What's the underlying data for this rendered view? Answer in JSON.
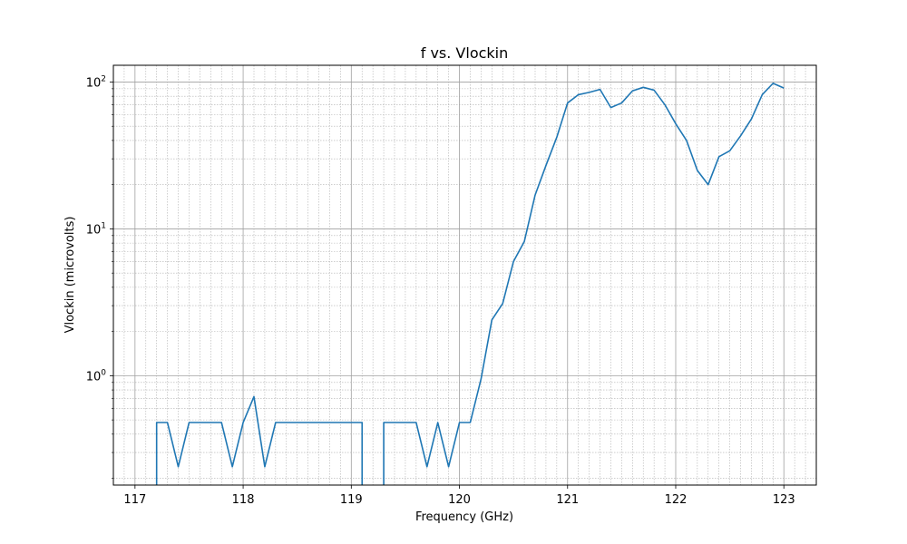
{
  "chart_data": {
    "type": "line",
    "title": "f vs. Vlockin",
    "xlabel": "Frequency (GHz)",
    "ylabel": "Vlockin (microvolts)",
    "xlim": [
      116.8,
      123.3
    ],
    "ylim": [
      0.18,
      130
    ],
    "yscale": "log",
    "grid": true,
    "x_ticks": [
      117,
      118,
      119,
      120,
      121,
      122,
      123
    ],
    "x_tick_labels": [
      "117",
      "118",
      "119",
      "120",
      "121",
      "122",
      "123"
    ],
    "y_ticks": [
      {
        "value": 1,
        "base": "10",
        "exp": "0"
      },
      {
        "value": 10,
        "base": "10",
        "exp": "1"
      },
      {
        "value": 100,
        "base": "10",
        "exp": "2"
      }
    ],
    "series": [
      {
        "color": "#1f77b4",
        "segments": [
          {
            "x": [
              117.2,
              117.2,
              117.3,
              117.4,
              117.5,
              117.6,
              117.7,
              117.8,
              117.9,
              118.0,
              118.1,
              118.2,
              118.3,
              118.4,
              118.5,
              118.6,
              118.7,
              118.8,
              118.9,
              119.0,
              119.1,
              119.1
            ],
            "y": [
              0.1,
              0.48,
              0.48,
              0.24,
              0.48,
              0.48,
              0.48,
              0.48,
              0.24,
              0.48,
              0.72,
              0.24,
              0.48,
              0.48,
              0.48,
              0.48,
              0.48,
              0.48,
              0.48,
              0.48,
              0.48,
              0.1
            ]
          },
          {
            "x": [
              119.3,
              119.3,
              119.4,
              119.5,
              119.6,
              119.7,
              119.8,
              119.9,
              120.0,
              120.1,
              120.2,
              120.3,
              120.4,
              120.5,
              120.6,
              120.7,
              120.8,
              120.9,
              121.0,
              121.1,
              121.2,
              121.3,
              121.4,
              121.5,
              121.6,
              121.7,
              121.8,
              121.9,
              122.0,
              122.1,
              122.2,
              122.3,
              122.4,
              122.5,
              122.6,
              122.7,
              122.8,
              122.9,
              123.0
            ],
            "y": [
              0.1,
              0.48,
              0.48,
              0.48,
              0.48,
              0.24,
              0.48,
              0.24,
              0.48,
              0.48,
              0.95,
              2.4,
              3.1,
              6.0,
              8.2,
              17,
              27,
              42,
              72,
              82,
              85,
              89,
              67,
              72,
              87,
              92,
              88,
              70,
              52,
              40,
              25,
              20,
              31,
              34,
              43,
              56,
              82,
              98,
              91
            ]
          }
        ]
      }
    ]
  }
}
